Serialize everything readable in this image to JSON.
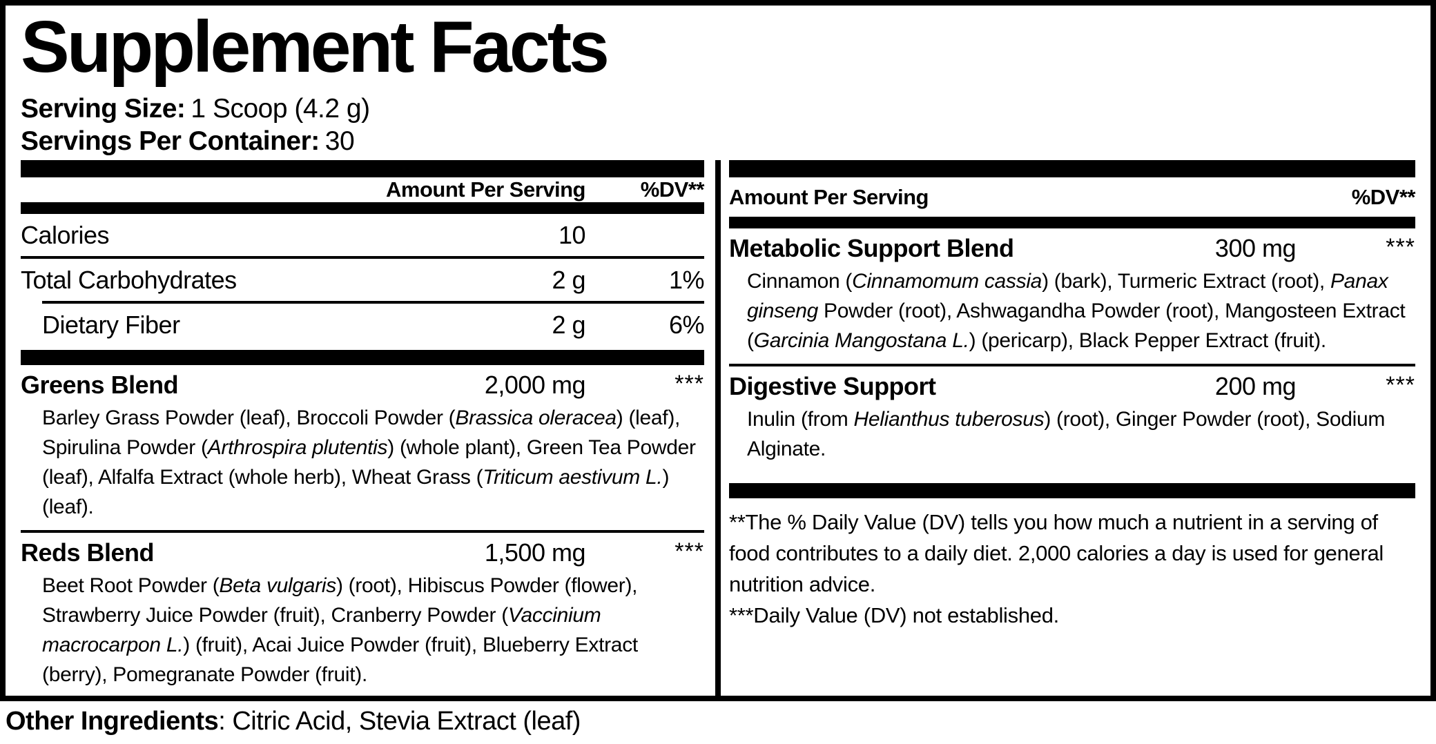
{
  "label": {
    "title": "Supplement Facts",
    "serving_size_label": "Serving Size:",
    "serving_size_value": "1 Scoop (4.2 g)",
    "servings_label": "Servings Per Container:",
    "servings_value": "30",
    "columns": {
      "amount_header": "Amount Per Serving",
      "dv_header": "%DV**"
    },
    "nutrients": [
      {
        "name": "Calories",
        "amount": "10",
        "dv": ""
      },
      {
        "name": "Total Carbohydrates",
        "amount": "2 g",
        "dv": "1%"
      },
      {
        "name": "Dietary Fiber",
        "amount": "2 g",
        "dv": "6%"
      }
    ],
    "blends_left": [
      {
        "name": "Greens Blend",
        "amount": "2,000 mg",
        "dv": "***",
        "ingredients": [
          {
            "t": "Barley Grass Powder (leaf), Broccoli Powder ("
          },
          {
            "t": "Brassica oleracea",
            "i": true
          },
          {
            "t": ") (leaf), Spirulina Powder ("
          },
          {
            "t": "Arthrospira plutentis",
            "i": true
          },
          {
            "t": ") (whole plant), Green Tea Powder (leaf), Alfalfa Extract (whole herb), Wheat Grass ("
          },
          {
            "t": "Triticum aestivum L.",
            "i": true
          },
          {
            "t": ") (leaf)."
          }
        ]
      },
      {
        "name": "Reds Blend",
        "amount": "1,500 mg",
        "dv": "***",
        "ingredients": [
          {
            "t": "Beet Root Powder ("
          },
          {
            "t": "Beta vulgaris",
            "i": true
          },
          {
            "t": ") (root), Hibiscus Powder (flower), Strawberry Juice Powder (fruit), Cranberry Powder ("
          },
          {
            "t": "Vaccinium macrocarpon L.",
            "i": true
          },
          {
            "t": ") (fruit), Acai Juice Powder (fruit), Blueberry Extract (berry), Pomegranate Powder (fruit)."
          }
        ]
      }
    ],
    "blends_right": [
      {
        "name": "Metabolic Support Blend",
        "amount": "300 mg",
        "dv": "***",
        "ingredients": [
          {
            "t": "Cinnamon ("
          },
          {
            "t": "Cinnamomum cassia",
            "i": true
          },
          {
            "t": ") (bark), Turmeric Extract (root), "
          },
          {
            "t": "Panax ginseng",
            "i": true
          },
          {
            "t": " Powder (root), Ashwagandha Powder (root), Mangosteen Extract ("
          },
          {
            "t": "Garcinia Mangostana L.",
            "i": true
          },
          {
            "t": ") (pericarp), Black Pepper Extract (fruit)."
          }
        ]
      },
      {
        "name": "Digestive Support",
        "amount": "200 mg",
        "dv": "***",
        "ingredients": [
          {
            "t": "Inulin (from "
          },
          {
            "t": "Helianthus tuberosus",
            "i": true
          },
          {
            "t": ") (root), Ginger Powder (root), Sodium Alginate."
          }
        ]
      }
    ],
    "footnotes": [
      "**The % Daily Value (DV) tells you how much a nutrient in a serving of food contributes to a daily diet. 2,000 calories a day is used for general nutrition advice.",
      "***Daily Value (DV) not established."
    ],
    "other_ingredients_label": "Other Ingredients",
    "other_ingredients_value": ": Citric Acid, Stevia Extract (leaf)"
  }
}
